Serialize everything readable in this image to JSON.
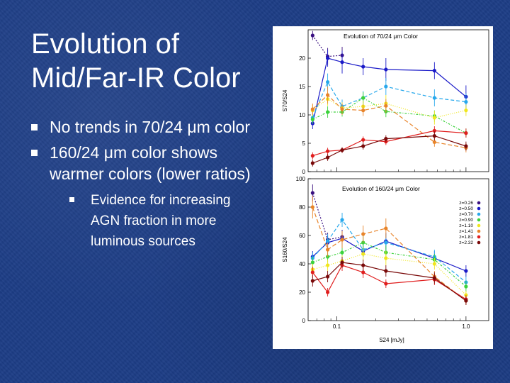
{
  "slide": {
    "title_line1": "Evolution of",
    "title_line2": "Mid/Far-IR Color",
    "bullets": [
      {
        "text": "No trends in 70/24 μm color"
      },
      {
        "text": "160/24 μm color shows warmer colors (lower ratios)",
        "sub": [
          "Evidence for increasing AGN fraction in more luminous sources"
        ]
      }
    ]
  },
  "colors": {
    "background": "#1d3d86",
    "series": [
      "#3a1080",
      "#1a1ac8",
      "#27a8ec",
      "#3cd23c",
      "#f0e61e",
      "#e8842a",
      "#e01e1e",
      "#7a0a0a"
    ]
  },
  "chart_data": [
    {
      "type": "line",
      "title": "Evolution of 70/24 μm Color",
      "xlabel": "S24 [mJy]",
      "ylabel": "S70/S24",
      "xscale": "log",
      "xlim": [
        0.06,
        1.5
      ],
      "ylim": [
        0,
        25
      ],
      "yticks": [
        0,
        5,
        10,
        15,
        20
      ],
      "xticks": [
        0.1,
        1.0
      ],
      "xtick_labels": [
        "0.1",
        "1.0"
      ],
      "legend": "none",
      "series": [
        {
          "x": [
            0.065,
            0.085,
            0.11
          ],
          "y": [
            24,
            20.3,
            20.5
          ],
          "err": [
            0.8,
            1.5,
            1.5
          ]
        },
        {
          "x": [
            0.065,
            0.085,
            0.11,
            0.16,
            0.24,
            0.57,
            1.0
          ],
          "y": [
            8.5,
            20,
            19.3,
            18.5,
            18,
            17.8,
            13.2
          ],
          "err": [
            1.0,
            1.5,
            2,
            1.5,
            2,
            1.5,
            2
          ]
        },
        {
          "x": [
            0.065,
            0.085,
            0.11,
            0.16,
            0.24,
            0.57,
            1.0
          ],
          "y": [
            9.5,
            15.8,
            11.5,
            13,
            15,
            13,
            12.3
          ],
          "err": [
            1.0,
            1.5,
            1.2,
            1.2,
            1.5,
            1.5,
            1.5
          ]
        },
        {
          "x": [
            0.065,
            0.085,
            0.11,
            0.16,
            0.24,
            0.57,
            1.0
          ],
          "y": [
            9.2,
            10.5,
            10.5,
            13,
            10.6,
            9.8,
            6.8
          ],
          "err": [
            0.8,
            1.0,
            0.8,
            1.0,
            1.0,
            1.0,
            0.8
          ]
        },
        {
          "x": [
            0.065,
            0.085,
            0.11,
            0.16,
            0.24,
            0.57,
            1.0
          ],
          "y": [
            10.8,
            12.8,
            11.2,
            11.5,
            12,
            9.5,
            10.8
          ],
          "err": [
            1.0,
            1.2,
            1.0,
            1.0,
            1.5,
            1.2,
            1.0
          ]
        },
        {
          "x": [
            0.065,
            0.085,
            0.11,
            0.16,
            0.24,
            0.57,
            1.0
          ],
          "y": [
            11,
            13.5,
            11,
            10.8,
            11.6,
            5.2,
            4.2
          ],
          "err": [
            1.0,
            1.5,
            1.0,
            1.0,
            1.2,
            0.8,
            0.8
          ]
        },
        {
          "x": [
            0.065,
            0.085,
            0.11,
            0.16,
            0.24,
            0.57,
            1.0
          ],
          "y": [
            2.8,
            3.6,
            3.8,
            5.6,
            5.3,
            7.2,
            6.8
          ],
          "err": [
            0.6,
            0.6,
            0.5,
            0.6,
            0.6,
            0.8,
            0.8
          ]
        },
        {
          "x": [
            0.065,
            0.085,
            0.11,
            0.16,
            0.24,
            0.57,
            1.0
          ],
          "y": [
            1.5,
            2.5,
            3.8,
            4.5,
            5.8,
            6.3,
            4.5
          ],
          "err": [
            0.6,
            0.6,
            0.5,
            0.6,
            0.6,
            0.8,
            0.8
          ]
        }
      ]
    },
    {
      "type": "line",
      "title": "Evolution of 160/24 μm Color",
      "xlabel": "S24 [mJy]",
      "ylabel": "S160/S24",
      "xscale": "log",
      "xlim": [
        0.06,
        1.5
      ],
      "ylim": [
        0,
        100
      ],
      "yticks": [
        0,
        20,
        40,
        60,
        80,
        100
      ],
      "xticks": [
        0.1,
        1.0
      ],
      "xtick_labels": [
        "0.1",
        "1.0"
      ],
      "legend": "top-right",
      "series": [
        {
          "name": "z=0.26",
          "x": [
            0.065,
            0.085,
            0.11
          ],
          "y": [
            90,
            57,
            59
          ],
          "err": [
            6,
            5,
            5
          ]
        },
        {
          "name": "z=0.50",
          "x": [
            0.065,
            0.085,
            0.11,
            0.16,
            0.24,
            0.57,
            1.0
          ],
          "y": [
            45,
            55,
            58,
            49,
            56,
            44,
            35
          ],
          "err": [
            4,
            5,
            5,
            4,
            6,
            5,
            4
          ]
        },
        {
          "name": "z=0.70",
          "x": [
            0.065,
            0.085,
            0.11,
            0.16,
            0.24,
            0.57,
            1.0
          ],
          "y": [
            44,
            56,
            71,
            50,
            55,
            45,
            27
          ],
          "err": [
            4,
            5,
            5,
            5,
            6,
            5,
            4
          ]
        },
        {
          "name": "z=0.90",
          "x": [
            0.065,
            0.085,
            0.11,
            0.16,
            0.24,
            0.57,
            1.0
          ],
          "y": [
            41,
            45,
            48,
            55,
            48,
            43,
            24
          ],
          "err": [
            4,
            4,
            5,
            5,
            5,
            4,
            4
          ]
        },
        {
          "name": "z=1.10",
          "x": [
            0.065,
            0.085,
            0.11,
            0.16,
            0.24,
            0.57,
            1.0
          ],
          "y": [
            36,
            39,
            42,
            47,
            44,
            40,
            18
          ],
          "err": [
            4,
            4,
            4,
            5,
            5,
            4,
            3
          ]
        },
        {
          "name": "z=1.41",
          "x": [
            0.065,
            0.085,
            0.11,
            0.16,
            0.24,
            0.57,
            1.0
          ],
          "y": [
            80,
            50,
            57,
            61,
            65,
            31,
            14
          ],
          "err": [
            8,
            5,
            6,
            6,
            7,
            4,
            3
          ]
        },
        {
          "name": "z=1.81",
          "x": [
            0.065,
            0.085,
            0.11,
            0.16,
            0.24,
            0.57,
            1.0
          ],
          "y": [
            34,
            20,
            39,
            34,
            26,
            29,
            15
          ],
          "err": [
            4,
            3,
            4,
            4,
            3,
            4,
            3
          ]
        },
        {
          "name": "z=2.32",
          "x": [
            0.065,
            0.085,
            0.11,
            0.16,
            0.24,
            0.57,
            1.0
          ],
          "y": [
            28,
            31,
            41,
            39,
            35,
            30,
            14
          ],
          "err": [
            4,
            4,
            4,
            4,
            4,
            4,
            3
          ]
        }
      ]
    }
  ]
}
